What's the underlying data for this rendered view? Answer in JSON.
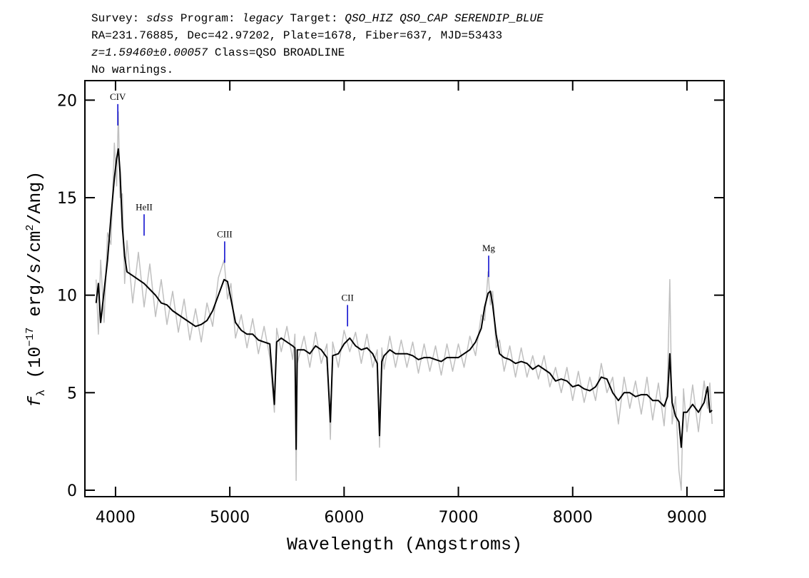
{
  "chart_data": {
    "type": "line",
    "header": [
      [
        "Survey: ",
        "sdss",
        " Program: ",
        "legacy",
        " Target: ",
        "QSO_HIZ QSO_CAP SERENDIP_BLUE"
      ],
      [
        "RA=231.76885, Dec=42.97202, Plate=1678, Fiber=637, MJD=53433"
      ],
      [
        "z=1.59460±0.00057",
        " Class=QSO BROADLINE"
      ],
      [
        "No warnings."
      ]
    ],
    "xlabel": "Wavelength (Angstroms)",
    "ylabel": [
      "f",
      "λ",
      " (10",
      "−17",
      " erg/s/cm",
      "2",
      "/Ang)"
    ],
    "xlim": [
      3732,
      9325
    ],
    "ylim": [
      -0.33,
      21
    ],
    "xticks": [
      4000,
      5000,
      6000,
      7000,
      8000,
      9000
    ],
    "yticks": [
      0,
      5,
      10,
      15,
      20
    ],
    "x": [
      3830,
      3850,
      3870,
      3900,
      3930,
      3960,
      3990,
      4010,
      4025,
      4040,
      4060,
      4080,
      4100,
      4150,
      4200,
      4250,
      4300,
      4350,
      4400,
      4450,
      4500,
      4550,
      4600,
      4650,
      4700,
      4750,
      4800,
      4850,
      4900,
      4950,
      4980,
      5010,
      5050,
      5100,
      5150,
      5200,
      5250,
      5300,
      5350,
      5390,
      5410,
      5450,
      5500,
      5550,
      5570,
      5580,
      5590,
      5650,
      5700,
      5750,
      5800,
      5850,
      5880,
      5900,
      5950,
      6000,
      6050,
      6100,
      6150,
      6200,
      6250,
      6290,
      6310,
      6330,
      6350,
      6400,
      6450,
      6500,
      6550,
      6600,
      6650,
      6700,
      6750,
      6800,
      6850,
      6900,
      6950,
      7000,
      7050,
      7100,
      7150,
      7200,
      7230,
      7260,
      7280,
      7300,
      7330,
      7360,
      7400,
      7450,
      7500,
      7550,
      7600,
      7650,
      7700,
      7750,
      7800,
      7850,
      7900,
      7950,
      8000,
      8050,
      8100,
      8150,
      8200,
      8250,
      8300,
      8350,
      8400,
      8450,
      8500,
      8550,
      8600,
      8650,
      8700,
      8750,
      8800,
      8830,
      8850,
      8870,
      8900,
      8930,
      8950,
      8970,
      9000,
      9050,
      9100,
      9150,
      9180,
      9200,
      9220
    ],
    "series": [
      {
        "color": "#c0c0c0",
        "values": [
          10.8,
          8.0,
          11.8,
          8.6,
          13.2,
          12.6,
          17.8,
          15.6,
          19.4,
          15.0,
          15.2,
          10.6,
          12.8,
          9.6,
          12.2,
          9.4,
          11.6,
          8.9,
          10.8,
          8.5,
          10.2,
          8.1,
          9.8,
          7.7,
          9.3,
          7.6,
          9.6,
          8.4,
          10.9,
          11.8,
          9.8,
          10.6,
          7.8,
          9.0,
          7.3,
          8.8,
          7.0,
          8.4,
          6.8,
          4.0,
          8.3,
          7.1,
          8.4,
          6.7,
          8.0,
          0.5,
          6.5,
          7.9,
          6.3,
          8.1,
          6.5,
          7.5,
          2.6,
          7.6,
          6.3,
          8.2,
          7.1,
          8.1,
          6.5,
          8.0,
          6.3,
          7.2,
          2.2,
          7.3,
          6.2,
          7.9,
          6.3,
          7.7,
          6.3,
          7.6,
          6.0,
          7.5,
          6.1,
          7.4,
          5.9,
          7.5,
          6.1,
          7.5,
          6.3,
          7.9,
          6.9,
          9.0,
          8.7,
          11.2,
          9.5,
          10.2,
          7.3,
          7.7,
          6.1,
          7.4,
          5.8,
          7.3,
          5.8,
          6.9,
          5.7,
          6.9,
          5.3,
          6.3,
          5.0,
          6.3,
          4.6,
          6.1,
          4.5,
          5.8,
          4.6,
          6.5,
          5.0,
          5.8,
          3.4,
          5.8,
          4.2,
          5.6,
          3.9,
          5.8,
          3.6,
          5.5,
          3.3,
          5.6,
          10.8,
          3.4,
          4.8,
          1.0,
          0.0,
          5.2,
          3.0,
          5.4,
          3.0,
          5.6,
          4.2,
          5.5,
          3.4
        ]
      },
      {
        "color": "#000000",
        "values": [
          9.6,
          10.6,
          8.6,
          10.2,
          11.8,
          14.0,
          16.0,
          17.0,
          17.5,
          16.3,
          13.5,
          12.0,
          11.2,
          11.0,
          10.8,
          10.6,
          10.3,
          10.0,
          9.6,
          9.5,
          9.2,
          9.0,
          8.8,
          8.6,
          8.4,
          8.5,
          8.7,
          9.2,
          10.0,
          10.8,
          10.7,
          9.8,
          8.6,
          8.2,
          8.0,
          8.0,
          7.7,
          7.6,
          7.5,
          4.4,
          7.6,
          7.8,
          7.6,
          7.4,
          7.3,
          2.1,
          7.2,
          7.2,
          7.0,
          7.4,
          7.2,
          6.8,
          3.5,
          6.9,
          7.0,
          7.5,
          7.8,
          7.4,
          7.2,
          7.3,
          7.0,
          6.5,
          2.8,
          6.6,
          6.9,
          7.2,
          7.0,
          7.0,
          7.0,
          6.9,
          6.7,
          6.8,
          6.8,
          6.7,
          6.6,
          6.8,
          6.8,
          6.8,
          7.0,
          7.2,
          7.6,
          8.3,
          9.4,
          10.1,
          10.2,
          9.5,
          8.0,
          7.0,
          6.8,
          6.7,
          6.5,
          6.6,
          6.5,
          6.2,
          6.4,
          6.2,
          6.0,
          5.6,
          5.7,
          5.6,
          5.3,
          5.4,
          5.2,
          5.1,
          5.3,
          5.8,
          5.7,
          5.0,
          4.6,
          5.0,
          5.0,
          4.8,
          4.9,
          4.9,
          4.6,
          4.6,
          4.3,
          4.8,
          7.0,
          4.5,
          3.8,
          3.5,
          2.2,
          4.0,
          4.0,
          4.4,
          4.0,
          4.5,
          5.3,
          4.0,
          4.1
        ]
      }
    ],
    "annotation_color": "#0000cc",
    "annotations": [
      {
        "label": "CIV",
        "x": 4020,
        "y": 18.7
      },
      {
        "label": "HeII",
        "x": 4250,
        "y": 13.05
      },
      {
        "label": "CIII",
        "x": 4955,
        "y": 11.66
      },
      {
        "label": "CII",
        "x": 6030,
        "y": 8.4
      },
      {
        "label": "Mg",
        "x": 7265,
        "y": 10.93
      }
    ]
  }
}
